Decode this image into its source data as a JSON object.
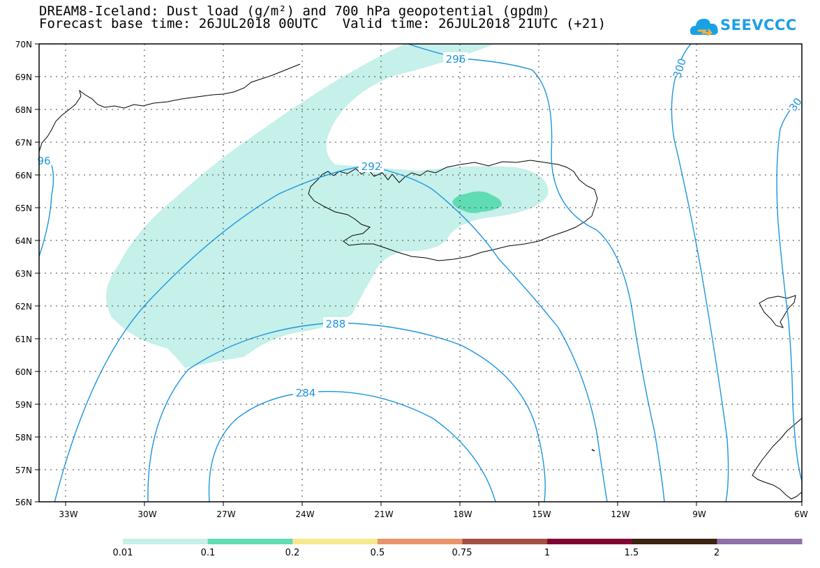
{
  "header": {
    "title_line1": "DREAM8-Iceland: Dust load (g/m²) and 700 hPa geopotential (gpdm)",
    "title_line2": "Forecast base time: 26JUL2018 00UTC   Valid time: 26JUL2018 21UTC (+21)"
  },
  "logo": {
    "text": "SEEVCCC",
    "icon": "cloud-icon"
  },
  "map": {
    "lat_labels": [
      "70N",
      "69N",
      "68N",
      "67N",
      "66N",
      "65N",
      "64N",
      "63N",
      "62N",
      "61N",
      "60N",
      "59N",
      "58N",
      "57N",
      "56N"
    ],
    "lon_labels": [
      "33W",
      "30W",
      "27W",
      "24W",
      "21W",
      "18W",
      "15W",
      "12W",
      "9W",
      "6W"
    ],
    "contour_labels": [
      "296",
      "300",
      "30",
      "96",
      "292",
      "288",
      "284"
    ],
    "contour_color": "#1a95e0",
    "dust_colors": {
      "low": "#c6f0ea",
      "mid": "#5fdcb4"
    }
  },
  "legend": {
    "labels": [
      "0.01",
      "0.1",
      "0.2",
      "0.5",
      "0.75",
      "1",
      "1.5",
      "2"
    ],
    "colors": [
      "#c6f0ea",
      "#5fdcb4",
      "#f7e98e",
      "#e8936a",
      "#a24f42",
      "#800533",
      "#3b2212",
      "#9070a8"
    ]
  }
}
